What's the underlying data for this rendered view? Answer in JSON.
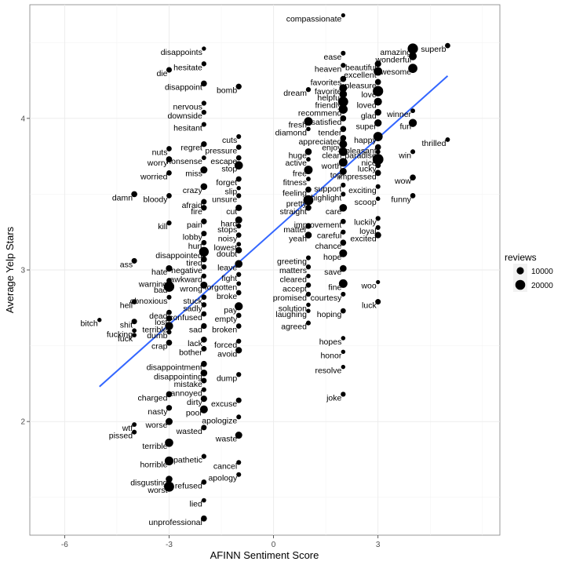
{
  "chart_data": {
    "type": "scatter",
    "title": "",
    "xlabel": "AFINN Sentiment Score",
    "ylabel": "Average Yelp Stars",
    "xlim": [
      -7,
      6.5
    ],
    "ylim": [
      1.25,
      4.75
    ],
    "x_ticks": [
      -6,
      -3,
      0,
      3
    ],
    "y_ticks": [
      2,
      3,
      4
    ],
    "grid": true,
    "legend": {
      "title": "reviews",
      "entries": [
        {
          "label": "10000",
          "size": 10000
        },
        {
          "label": "20000",
          "size": 20000
        }
      ],
      "placement": "right"
    },
    "trend_line": {
      "color": "#3366ff",
      "x": [
        -5,
        5
      ],
      "y": [
        2.23,
        4.28
      ]
    },
    "labeled_points": [
      {
        "word": "compassionate",
        "x": 2,
        "y": 4.68,
        "reviews": 200
      },
      {
        "word": "superb",
        "x": 5,
        "y": 4.48,
        "reviews": 1500
      },
      {
        "word": "amazing",
        "x": 4,
        "y": 4.46,
        "reviews": 22000
      },
      {
        "word": "ease",
        "x": 2,
        "y": 4.43,
        "reviews": 800
      },
      {
        "word": "wonderful",
        "x": 4,
        "y": 4.41,
        "reviews": 9000
      },
      {
        "word": "beautiful",
        "x": 3,
        "y": 4.36,
        "reviews": 4000
      },
      {
        "word": "heaven",
        "x": 2,
        "y": 4.35,
        "reviews": 1000
      },
      {
        "word": "awesome",
        "x": 4,
        "y": 4.33,
        "reviews": 15000
      },
      {
        "word": "excellent",
        "x": 3,
        "y": 4.31,
        "reviews": 12000
      },
      {
        "word": "favorites",
        "x": 2,
        "y": 4.26,
        "reviews": 3000
      },
      {
        "word": "pleasure",
        "x": 3,
        "y": 4.24,
        "reviews": 3000
      },
      {
        "word": "favorite",
        "x": 2,
        "y": 4.2,
        "reviews": 9000
      },
      {
        "word": "dream",
        "x": 1,
        "y": 4.19,
        "reviews": 1000
      },
      {
        "word": "love",
        "x": 3,
        "y": 4.18,
        "reviews": 22000
      },
      {
        "word": "helpful",
        "x": 2,
        "y": 4.16,
        "reviews": 8000
      },
      {
        "word": "friendly",
        "x": 2,
        "y": 4.11,
        "reviews": 20000
      },
      {
        "word": "loved",
        "x": 3,
        "y": 4.11,
        "reviews": 9000
      },
      {
        "word": "recommend",
        "x": 2,
        "y": 4.06,
        "reviews": 14000
      },
      {
        "word": "winner",
        "x": 4,
        "y": 4.05,
        "reviews": 600
      },
      {
        "word": "glad",
        "x": 3,
        "y": 4.04,
        "reviews": 5000
      },
      {
        "word": "satisfied",
        "x": 2,
        "y": 4.0,
        "reviews": 3000
      },
      {
        "word": "fresh",
        "x": 1,
        "y": 3.98,
        "reviews": 12000
      },
      {
        "word": "super",
        "x": 3,
        "y": 3.97,
        "reviews": 7000
      },
      {
        "word": "fun",
        "x": 4,
        "y": 3.97,
        "reviews": 10000
      },
      {
        "word": "diamond",
        "x": 1,
        "y": 3.93,
        "reviews": 400
      },
      {
        "word": "tender",
        "x": 2,
        "y": 3.93,
        "reviews": 3000
      },
      {
        "word": "happy",
        "x": 3,
        "y": 3.88,
        "reviews": 16000
      },
      {
        "word": "appreciated",
        "x": 2,
        "y": 3.87,
        "reviews": 3000
      },
      {
        "word": "thrilled",
        "x": 5,
        "y": 3.86,
        "reviews": 600
      },
      {
        "word": "enjoy",
        "x": 2,
        "y": 3.83,
        "reviews": 9000
      },
      {
        "word": "pleasant",
        "x": 3,
        "y": 3.81,
        "reviews": 3000
      },
      {
        "word": "paradise",
        "x": 3,
        "y": 3.78,
        "reviews": 800
      },
      {
        "word": "clean",
        "x": 2,
        "y": 3.78,
        "reviews": 12000
      },
      {
        "word": "huge",
        "x": 1,
        "y": 3.78,
        "reviews": 5000
      },
      {
        "word": "win",
        "x": 4,
        "y": 3.78,
        "reviews": 800
      },
      {
        "word": "worth",
        "x": 2,
        "y": 3.71,
        "reviews": 12000
      },
      {
        "word": "nice",
        "x": 3,
        "y": 3.73,
        "reviews": 25000
      },
      {
        "word": "active",
        "x": 1,
        "y": 3.73,
        "reviews": 500
      },
      {
        "word": "lucky",
        "x": 3,
        "y": 3.69,
        "reviews": 2000
      },
      {
        "word": "free",
        "x": 1,
        "y": 3.66,
        "reviews": 12000
      },
      {
        "word": "top",
        "x": 2,
        "y": 3.65,
        "reviews": 6000
      },
      {
        "word": "impressed",
        "x": 3,
        "y": 3.64,
        "reviews": 3000
      },
      {
        "word": "fitness",
        "x": 1,
        "y": 3.6,
        "reviews": 600
      },
      {
        "word": "wow",
        "x": 4,
        "y": 3.61,
        "reviews": 3000
      },
      {
        "word": "support",
        "x": 2,
        "y": 3.56,
        "reviews": 1000
      },
      {
        "word": "exciting",
        "x": 3,
        "y": 3.55,
        "reviews": 800
      },
      {
        "word": "feeling",
        "x": 1,
        "y": 3.53,
        "reviews": 3000
      },
      {
        "word": "highlight",
        "x": 2,
        "y": 3.5,
        "reviews": 800
      },
      {
        "word": "funny",
        "x": 4,
        "y": 3.49,
        "reviews": 1500
      },
      {
        "word": "pretty",
        "x": 1,
        "y": 3.46,
        "reviews": 20000
      },
      {
        "word": "scoop",
        "x": 3,
        "y": 3.47,
        "reviews": 400
      },
      {
        "word": "straight",
        "x": 1,
        "y": 3.41,
        "reviews": 3000
      },
      {
        "word": "care",
        "x": 2,
        "y": 3.41,
        "reviews": 8000
      },
      {
        "word": "luckily",
        "x": 3,
        "y": 3.34,
        "reviews": 1000
      },
      {
        "word": "improvement",
        "x": 2,
        "y": 3.32,
        "reviews": 1500
      },
      {
        "word": "matter",
        "x": 1,
        "y": 3.29,
        "reviews": 2500
      },
      {
        "word": "loyal",
        "x": 3,
        "y": 3.28,
        "reviews": 800
      },
      {
        "word": "careful",
        "x": 2,
        "y": 3.25,
        "reviews": 1000
      },
      {
        "word": "yeah",
        "x": 1,
        "y": 3.23,
        "reviews": 5000
      },
      {
        "word": "excited",
        "x": 3,
        "y": 3.23,
        "reviews": 4000
      },
      {
        "word": "chance",
        "x": 2,
        "y": 3.18,
        "reviews": 3000
      },
      {
        "word": "hope",
        "x": 2,
        "y": 3.11,
        "reviews": 9000
      },
      {
        "word": "greeting",
        "x": 1,
        "y": 3.08,
        "reviews": 800
      },
      {
        "word": "matters",
        "x": 1,
        "y": 3.02,
        "reviews": 1000
      },
      {
        "word": "save",
        "x": 2,
        "y": 3.01,
        "reviews": 5000
      },
      {
        "word": "cleared",
        "x": 1,
        "y": 2.96,
        "reviews": 400
      },
      {
        "word": "accept",
        "x": 1,
        "y": 2.9,
        "reviews": 1500
      },
      {
        "word": "fine",
        "x": 2,
        "y": 2.91,
        "reviews": 12000
      },
      {
        "word": "woo",
        "x": 3,
        "y": 2.92,
        "reviews": 200
      },
      {
        "word": "promised",
        "x": 1,
        "y": 2.84,
        "reviews": 1000
      },
      {
        "word": "courtesy",
        "x": 2,
        "y": 2.84,
        "reviews": 800
      },
      {
        "word": "solution",
        "x": 1,
        "y": 2.77,
        "reviews": 400
      },
      {
        "word": "luck",
        "x": 3,
        "y": 2.79,
        "reviews": 2000
      },
      {
        "word": "laughing",
        "x": 1,
        "y": 2.73,
        "reviews": 300
      },
      {
        "word": "hoping",
        "x": 2,
        "y": 2.73,
        "reviews": 1500
      },
      {
        "word": "agreed",
        "x": 1,
        "y": 2.65,
        "reviews": 800
      },
      {
        "word": "hopes",
        "x": 2,
        "y": 2.55,
        "reviews": 400
      },
      {
        "word": "honor",
        "x": 2,
        "y": 2.46,
        "reviews": 300
      },
      {
        "word": "resolve",
        "x": 2,
        "y": 2.36,
        "reviews": 300
      },
      {
        "word": "joke",
        "x": 2,
        "y": 2.18,
        "reviews": 1000
      },
      {
        "word": "disappoints",
        "x": -2,
        "y": 4.46,
        "reviews": 300
      },
      {
        "word": "hesitate",
        "x": -2,
        "y": 4.36,
        "reviews": 1000
      },
      {
        "word": "die",
        "x": -3,
        "y": 4.32,
        "reviews": 2000
      },
      {
        "word": "disappoint",
        "x": -2,
        "y": 4.23,
        "reviews": 3000
      },
      {
        "word": "bomb",
        "x": -1,
        "y": 4.21,
        "reviews": 2500
      },
      {
        "word": "nervous",
        "x": -2,
        "y": 4.1,
        "reviews": 1000
      },
      {
        "word": "downside",
        "x": -2,
        "y": 4.04,
        "reviews": 1000
      },
      {
        "word": "hesitant",
        "x": -2,
        "y": 3.96,
        "reviews": 800
      },
      {
        "word": "cuts",
        "x": -1,
        "y": 3.88,
        "reviews": 800
      },
      {
        "word": "regret",
        "x": -2,
        "y": 3.83,
        "reviews": 2500
      },
      {
        "word": "pressure",
        "x": -1,
        "y": 3.81,
        "reviews": 1500
      },
      {
        "word": "nuts",
        "x": -3,
        "y": 3.8,
        "reviews": 1500
      },
      {
        "word": "nonsense",
        "x": -2,
        "y": 3.74,
        "reviews": 600
      },
      {
        "word": "escape",
        "x": -1,
        "y": 3.74,
        "reviews": 1500
      },
      {
        "word": "worry",
        "x": -3,
        "y": 3.73,
        "reviews": 3000
      },
      {
        "word": "stop",
        "x": -1,
        "y": 3.69,
        "reviews": 11000
      },
      {
        "word": "miss",
        "x": -2,
        "y": 3.66,
        "reviews": 6000
      },
      {
        "word": "worried",
        "x": -3,
        "y": 3.64,
        "reviews": 1500
      },
      {
        "word": "forget",
        "x": -1,
        "y": 3.6,
        "reviews": 2000
      },
      {
        "word": "crazy",
        "x": -2,
        "y": 3.55,
        "reviews": 5000
      },
      {
        "word": "slip",
        "x": -1,
        "y": 3.54,
        "reviews": 300
      },
      {
        "word": "damn",
        "x": -4,
        "y": 3.5,
        "reviews": 3000
      },
      {
        "word": "bloody",
        "x": -3,
        "y": 3.49,
        "reviews": 1500
      },
      {
        "word": "unsure",
        "x": -1,
        "y": 3.49,
        "reviews": 1000
      },
      {
        "word": "afraid",
        "x": -2,
        "y": 3.45,
        "reviews": 2000
      },
      {
        "word": "fire",
        "x": -2,
        "y": 3.41,
        "reviews": 2500
      },
      {
        "word": "cut",
        "x": -1,
        "y": 3.41,
        "reviews": 4000
      },
      {
        "word": "hard",
        "x": -1,
        "y": 3.33,
        "reviews": 6000
      },
      {
        "word": "pain",
        "x": -2,
        "y": 3.32,
        "reviews": 2500
      },
      {
        "word": "kill",
        "x": -3,
        "y": 3.31,
        "reviews": 1000
      },
      {
        "word": "stops",
        "x": -1,
        "y": 3.29,
        "reviews": 1000
      },
      {
        "word": "lobby",
        "x": -2,
        "y": 3.24,
        "reviews": 2000
      },
      {
        "word": "noisy",
        "x": -1,
        "y": 3.23,
        "reviews": 1500
      },
      {
        "word": "hurt",
        "x": -2,
        "y": 3.18,
        "reviews": 1500
      },
      {
        "word": "lowest",
        "x": -1,
        "y": 3.17,
        "reviews": 600
      },
      {
        "word": "doubt",
        "x": -1,
        "y": 3.13,
        "reviews": 4000
      },
      {
        "word": "disappointed",
        "x": -2,
        "y": 3.12,
        "reviews": 18000
      },
      {
        "word": "tired",
        "x": -2,
        "y": 3.07,
        "reviews": 3000
      },
      {
        "word": "ass",
        "x": -4,
        "y": 3.06,
        "reviews": 2000
      },
      {
        "word": "hate",
        "x": -3,
        "y": 3.01,
        "reviews": 4000
      },
      {
        "word": "negative",
        "x": -2,
        "y": 3.02,
        "reviews": 1500
      },
      {
        "word": "leave",
        "x": -1,
        "y": 3.04,
        "reviews": 8000
      },
      {
        "word": "fight",
        "x": -1,
        "y": 2.97,
        "reviews": 1000
      },
      {
        "word": "awkward",
        "x": -2,
        "y": 2.96,
        "reviews": 1000
      },
      {
        "word": "warning",
        "x": -3,
        "y": 2.93,
        "reviews": 1500
      },
      {
        "word": "bad",
        "x": -3,
        "y": 2.89,
        "reviews": 22000
      },
      {
        "word": "wrong",
        "x": -2,
        "y": 2.9,
        "reviews": 6000
      },
      {
        "word": "forgotten",
        "x": -1,
        "y": 2.91,
        "reviews": 600
      },
      {
        "word": "broke",
        "x": -1,
        "y": 2.85,
        "reviews": 1500
      },
      {
        "word": "obnoxious",
        "x": -3,
        "y": 2.82,
        "reviews": 800
      },
      {
        "word": "stuck",
        "x": -2,
        "y": 2.82,
        "reviews": 1500
      },
      {
        "word": "hell",
        "x": -4,
        "y": 2.79,
        "reviews": 1500
      },
      {
        "word": "sadly",
        "x": -2,
        "y": 2.77,
        "reviews": 1500
      },
      {
        "word": "pay",
        "x": -1,
        "y": 2.76,
        "reviews": 10000
      },
      {
        "word": "dead",
        "x": -3,
        "y": 2.72,
        "reviews": 1500
      },
      {
        "word": "confused",
        "x": -2,
        "y": 2.71,
        "reviews": 1500
      },
      {
        "word": "empty",
        "x": -1,
        "y": 2.7,
        "reviews": 1500
      },
      {
        "word": "lost",
        "x": -3,
        "y": 2.68,
        "reviews": 3000
      },
      {
        "word": "bitch",
        "x": -5,
        "y": 2.67,
        "reviews": 300
      },
      {
        "word": "shit",
        "x": -4,
        "y": 2.66,
        "reviews": 2000
      },
      {
        "word": "terrible",
        "x": -3,
        "y": 2.63,
        "reviews": 10000
      },
      {
        "word": "sad",
        "x": -2,
        "y": 2.63,
        "reviews": 2500
      },
      {
        "word": "broken",
        "x": -1,
        "y": 2.63,
        "reviews": 1500
      },
      {
        "word": "dumb",
        "x": -3,
        "y": 2.59,
        "reviews": 800
      },
      {
        "word": "fucking",
        "x": -4,
        "y": 2.6,
        "reviews": 500
      },
      {
        "word": "fuck",
        "x": -4,
        "y": 2.57,
        "reviews": 500
      },
      {
        "word": "lack",
        "x": -2,
        "y": 2.54,
        "reviews": 3000
      },
      {
        "word": "crap",
        "x": -3,
        "y": 2.52,
        "reviews": 3000
      },
      {
        "word": "forced",
        "x": -1,
        "y": 2.53,
        "reviews": 1000
      },
      {
        "word": "bother",
        "x": -2,
        "y": 2.48,
        "reviews": 2000
      },
      {
        "word": "avoid",
        "x": -1,
        "y": 2.47,
        "reviews": 4000
      },
      {
        "word": "disappointment",
        "x": -2,
        "y": 2.38,
        "reviews": 3000
      },
      {
        "word": "disappointing",
        "x": -2,
        "y": 2.32,
        "reviews": 5000
      },
      {
        "word": "dump",
        "x": -1,
        "y": 2.31,
        "reviews": 1000
      },
      {
        "word": "mistake",
        "x": -2,
        "y": 2.27,
        "reviews": 2000
      },
      {
        "word": "annoyed",
        "x": -2,
        "y": 2.21,
        "reviews": 800
      },
      {
        "word": "charged",
        "x": -3,
        "y": 2.18,
        "reviews": 3000
      },
      {
        "word": "dirty",
        "x": -2,
        "y": 2.15,
        "reviews": 4000
      },
      {
        "word": "excuse",
        "x": -1,
        "y": 2.14,
        "reviews": 2000
      },
      {
        "word": "nasty",
        "x": -3,
        "y": 2.09,
        "reviews": 2500
      },
      {
        "word": "poor",
        "x": -2,
        "y": 2.08,
        "reviews": 9000
      },
      {
        "word": "worse",
        "x": -3,
        "y": 2.0,
        "reviews": 6000
      },
      {
        "word": "apologize",
        "x": -1,
        "y": 2.03,
        "reviews": 800
      },
      {
        "word": "wtf",
        "x": -4,
        "y": 1.98,
        "reviews": 600
      },
      {
        "word": "wasted",
        "x": -2,
        "y": 1.96,
        "reviews": 2000
      },
      {
        "word": "pissed",
        "x": -4,
        "y": 1.93,
        "reviews": 800
      },
      {
        "word": "waste",
        "x": -1,
        "y": 1.91,
        "reviews": 6000
      },
      {
        "word": "terrible",
        "x": -3,
        "y": 1.86,
        "reviews": 11000
      },
      {
        "word": "pathetic",
        "x": -2,
        "y": 1.77,
        "reviews": 1000
      },
      {
        "word": "horrible",
        "x": -3,
        "y": 1.74,
        "reviews": 13000
      },
      {
        "word": "cancel",
        "x": -1,
        "y": 1.73,
        "reviews": 800
      },
      {
        "word": "disgusting",
        "x": -3,
        "y": 1.62,
        "reviews": 5000
      },
      {
        "word": "apology",
        "x": -1,
        "y": 1.65,
        "reviews": 800
      },
      {
        "word": "refused",
        "x": -2,
        "y": 1.6,
        "reviews": 1500
      },
      {
        "word": "worst",
        "x": -3,
        "y": 1.57,
        "reviews": 20000
      },
      {
        "word": "lied",
        "x": -2,
        "y": 1.48,
        "reviews": 500
      },
      {
        "word": "unprofessional",
        "x": -2,
        "y": 1.36,
        "reviews": 3000
      }
    ]
  }
}
